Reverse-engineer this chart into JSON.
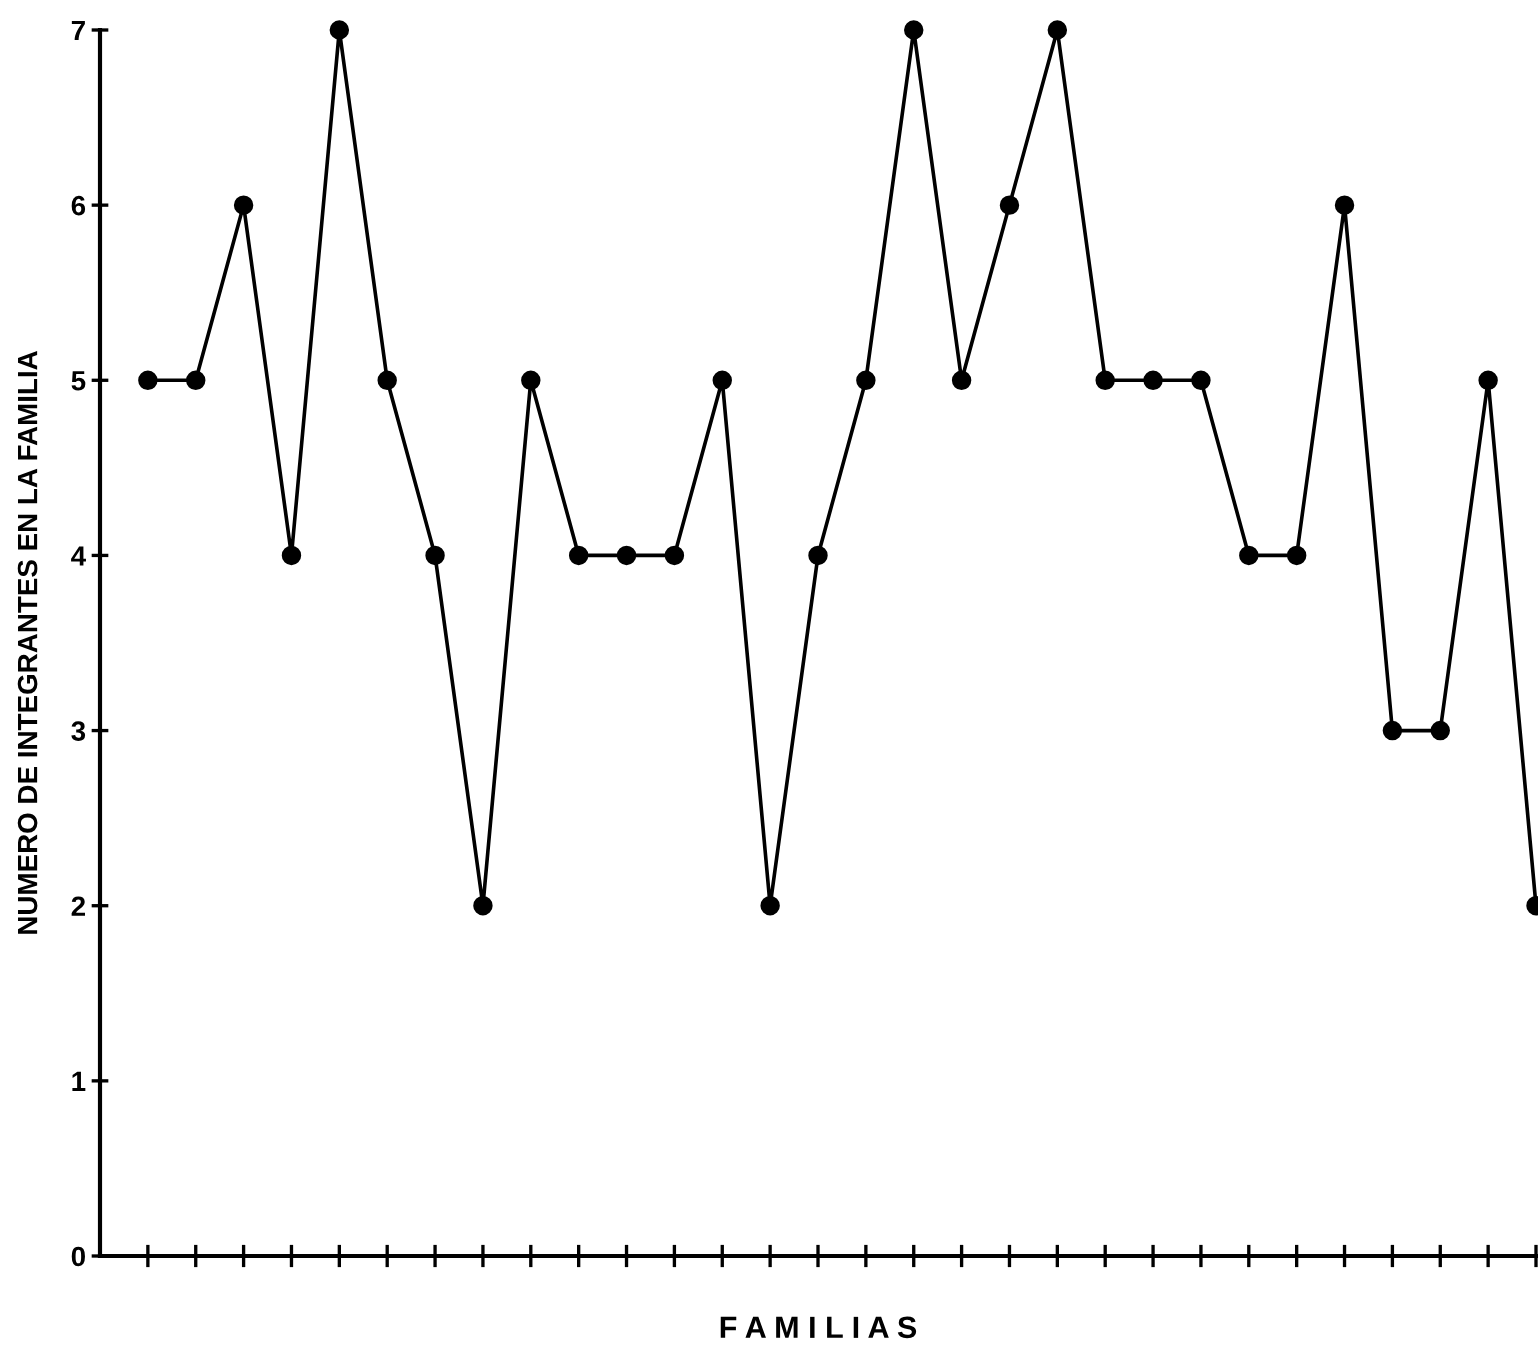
{
  "chart_data": {
    "type": "line",
    "xlabel": "F A M I L I A S",
    "ylabel": "NUMERO DE INTEGRANTES EN LA FAMILIA",
    "categories": [
      null,
      null,
      null,
      null,
      null,
      null,
      null,
      null,
      null,
      null,
      null,
      null,
      null,
      null,
      null,
      null,
      null,
      null,
      null,
      null,
      null,
      null,
      null,
      null,
      null,
      null,
      null,
      null,
      null,
      null
    ],
    "series": [
      {
        "color": "#000000",
        "values": [
          5,
          5,
          6,
          4,
          7,
          5,
          4,
          2,
          5,
          4,
          4,
          4,
          5,
          2,
          4,
          5,
          7,
          5,
          6,
          7,
          5,
          5,
          5,
          4,
          4,
          6,
          3,
          3,
          5,
          2
        ]
      }
    ],
    "ylim": [
      0,
      7
    ],
    "yticks": [
      0,
      1,
      2,
      3,
      4,
      5,
      6,
      7
    ],
    "marker": "circle",
    "line_style": "solid",
    "grid": false,
    "legend": false
  }
}
